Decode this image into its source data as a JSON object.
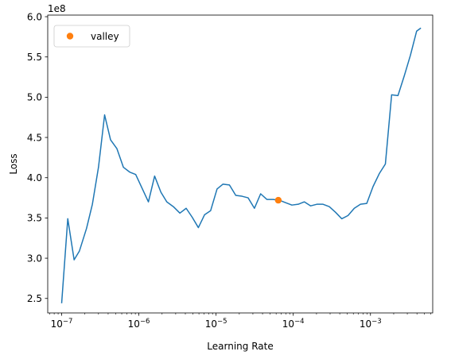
{
  "chart_data": {
    "type": "line",
    "xlabel": "Learning Rate",
    "ylabel": "Loss",
    "xscale": "log",
    "xlim": [
      6.6e-08,
      0.0064
    ],
    "ylim": [
      232000000.0,
      602000000.0
    ],
    "y_offset_text": "1e8",
    "x_ticks": [
      {
        "value": 1e-07,
        "base": "10",
        "exp": "−7"
      },
      {
        "value": 1e-06,
        "base": "10",
        "exp": "−6"
      },
      {
        "value": 1e-05,
        "base": "10",
        "exp": "−5"
      },
      {
        "value": 0.0001,
        "base": "10",
        "exp": "−4"
      },
      {
        "value": 0.001,
        "base": "10",
        "exp": "−3"
      }
    ],
    "y_ticks": [
      {
        "value": 250000000.0,
        "label": "2.5"
      },
      {
        "value": 300000000.0,
        "label": "3.0"
      },
      {
        "value": 350000000.0,
        "label": "3.5"
      },
      {
        "value": 400000000.0,
        "label": "4.0"
      },
      {
        "value": 450000000.0,
        "label": "4.5"
      },
      {
        "value": 500000000.0,
        "label": "5.0"
      },
      {
        "value": 550000000.0,
        "label": "5.5"
      },
      {
        "value": 600000000.0,
        "label": "6.0"
      }
    ],
    "line_color": "#1f77b4",
    "marker_color": "#ff7f0e",
    "grid": false,
    "legend_position": "top-left",
    "series": [
      {
        "x": [
          1e-07,
          1.2e-07,
          1.45e-07,
          1.7e-07,
          2.1e-07,
          2.5e-07,
          3e-07,
          3.6e-07,
          4.3e-07,
          5.2e-07,
          6.3e-07,
          7.6e-07,
          9.1e-07,
          1.1e-06,
          1.33e-06,
          1.6e-06,
          1.93e-06,
          2.3e-06,
          2.8e-06,
          3.4e-06,
          4.1e-06,
          4.9e-06,
          5.9e-06,
          7.1e-06,
          8.5e-06,
          1.03e-05,
          1.23e-05,
          1.49e-05,
          1.8e-05,
          2.16e-05,
          2.6e-05,
          3.14e-05,
          3.78e-05,
          4.55e-05,
          5.5e-05,
          6.6e-05,
          7.96e-05,
          9.6e-05,
          0.000116,
          0.000139,
          0.000168,
          0.000202,
          0.000243,
          0.000293,
          0.000353,
          0.000425,
          0.000512,
          0.000617,
          0.000743,
          0.000895,
          0.00108,
          0.0013,
          0.00156,
          0.00188,
          0.00227,
          0.00273,
          0.00329,
          0.00396,
          0.0045
        ],
        "y": [
          244000000.0,
          349000000.0,
          298000000.0,
          309000000.0,
          337000000.0,
          367000000.0,
          413000000.0,
          478000000.0,
          447000000.0,
          436000000.0,
          413000000.0,
          407000000.0,
          404000000.0,
          387000000.0,
          370000000.0,
          402000000.0,
          382000000.0,
          370000000.0,
          364000000.0,
          356000000.0,
          362000000.0,
          351000000.0,
          338000000.0,
          354000000.0,
          359000000.0,
          386000000.0,
          392000000.0,
          391000000.0,
          378000000.0,
          377000000.0,
          375000000.0,
          362000000.0,
          380000000.0,
          373000000.0,
          373000000.0,
          372000000.0,
          369000000.0,
          366000000.0,
          367000000.0,
          370000000.0,
          365000000.0,
          367000000.0,
          367000000.0,
          364000000.0,
          357000000.0,
          349000000.0,
          353000000.0,
          362000000.0,
          367000000.0,
          368000000.0,
          389000000.0,
          405000000.0,
          417000000.0,
          503000000.0,
          502000000.0,
          526000000.0,
          552000000.0,
          582000000.0,
          586000000.0
        ]
      }
    ],
    "markers": [
      {
        "name": "valley",
        "x": 6.4e-05,
        "y": 372000000.0
      }
    ]
  }
}
